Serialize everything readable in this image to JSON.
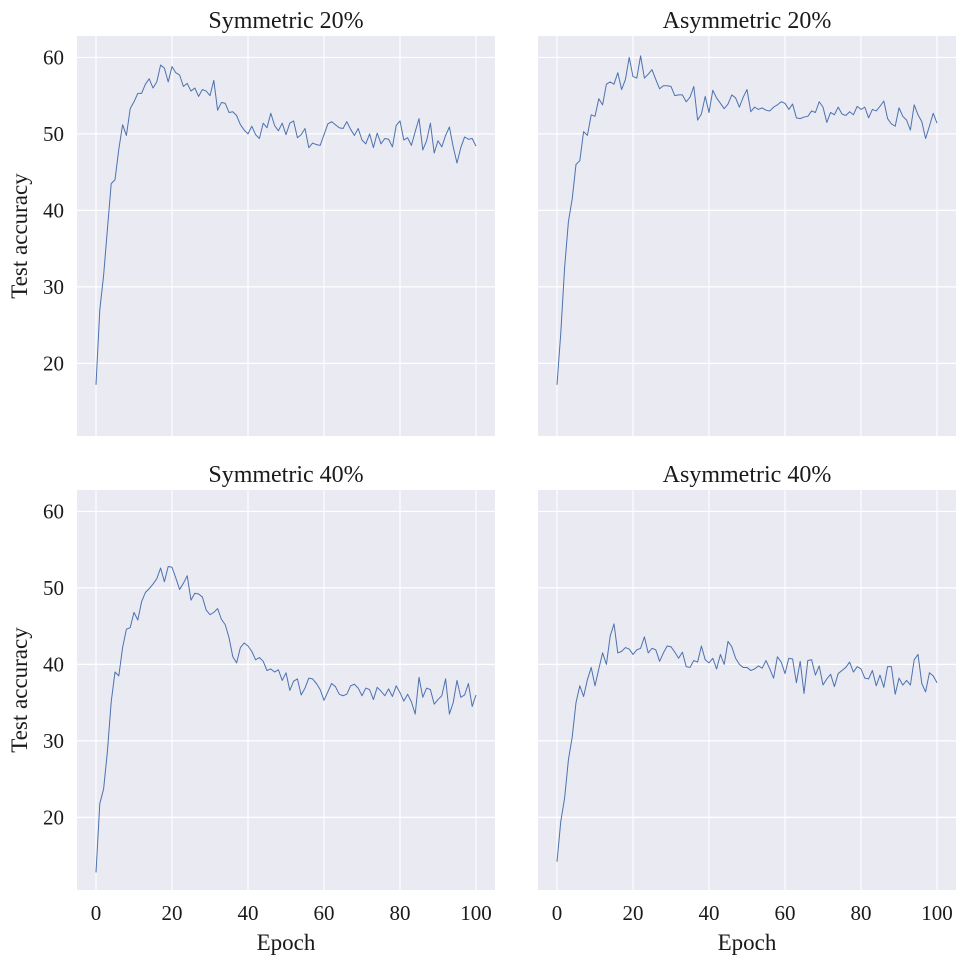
{
  "colors": {
    "background": "#eaeaf2",
    "grid": "#ffffff",
    "line": "#4c72b0"
  },
  "chart_data": [
    {
      "type": "line",
      "title": "Symmetric 20%",
      "xlabel": "",
      "ylabel": "Test accuracy",
      "xlim": [
        -5,
        105
      ],
      "ylim": [
        10.5,
        62.8
      ],
      "xticks": [
        0,
        20,
        40,
        60,
        80,
        100
      ],
      "yticks": [
        20,
        30,
        40,
        50,
        60
      ],
      "xtick_labels_visible": false,
      "ytick_labels_visible": true,
      "grid": true,
      "series": [
        {
          "values": [
            17.2,
            27.0,
            31.5,
            37.5,
            43.5,
            44.0,
            48.0,
            51.2,
            49.8,
            53.3,
            54.2,
            55.3,
            55.3,
            56.5,
            57.2,
            56.0,
            56.8,
            59.0,
            58.6,
            56.8,
            58.8,
            58.0,
            57.7,
            56.2,
            56.6,
            55.6,
            56.0,
            54.9,
            55.8,
            55.6,
            55.0,
            57.0,
            53.1,
            54.1,
            54.0,
            52.8,
            52.9,
            52.4,
            51.2,
            50.5,
            50.0,
            51.0,
            49.9,
            49.4,
            51.4,
            50.8,
            52.7,
            51.1,
            50.4,
            51.4,
            49.9,
            51.4,
            51.7,
            49.5,
            49.9,
            50.7,
            48.2,
            48.8,
            48.6,
            48.5,
            49.9,
            51.3,
            51.6,
            51.2,
            50.8,
            50.7,
            51.6,
            50.6,
            49.8,
            50.7,
            49.2,
            48.7,
            50.0,
            48.2,
            50.1,
            48.7,
            49.4,
            49.3,
            48.3,
            51.1,
            51.7,
            49.2,
            49.5,
            48.5,
            50.3,
            52.0,
            47.9,
            49.1,
            51.4,
            47.5,
            49.1,
            48.3,
            49.8,
            50.9,
            48.3,
            46.2,
            48.2,
            49.6,
            49.3,
            49.4,
            48.4
          ]
        }
      ]
    },
    {
      "type": "line",
      "title": "Asymmetric 20%",
      "xlabel": "",
      "ylabel": "",
      "xlim": [
        -5,
        105
      ],
      "ylim": [
        10.5,
        62.8
      ],
      "xticks": [
        0,
        20,
        40,
        60,
        80,
        100
      ],
      "yticks": [
        20,
        30,
        40,
        50,
        60
      ],
      "xtick_labels_visible": false,
      "ytick_labels_visible": false,
      "grid": true,
      "series": [
        {
          "values": [
            17.2,
            24.0,
            32.5,
            38.5,
            41.5,
            46.0,
            46.5,
            50.3,
            49.8,
            52.5,
            52.3,
            54.6,
            53.8,
            56.5,
            56.8,
            56.5,
            58.0,
            55.8,
            57.1,
            60.0,
            57.5,
            57.3,
            60.2,
            57.3,
            57.8,
            58.4,
            57.1,
            55.9,
            56.3,
            56.3,
            56.2,
            55.0,
            55.1,
            55.1,
            54.2,
            54.8,
            56.2,
            51.8,
            52.6,
            54.9,
            52.8,
            55.7,
            54.7,
            54.0,
            53.3,
            53.9,
            55.1,
            54.7,
            53.5,
            54.8,
            55.8,
            52.9,
            53.5,
            53.2,
            53.4,
            53.1,
            53.0,
            53.5,
            53.8,
            54.2,
            54.0,
            53.2,
            53.9,
            52.1,
            52.0,
            52.2,
            52.3,
            53.0,
            52.8,
            54.2,
            53.5,
            51.5,
            52.8,
            52.5,
            53.5,
            52.6,
            52.4,
            52.9,
            52.5,
            53.6,
            53.2,
            53.5,
            52.1,
            53.2,
            53.0,
            53.6,
            54.3,
            52.0,
            51.3,
            51.0,
            53.4,
            52.3,
            51.8,
            50.5,
            53.8,
            52.5,
            51.6,
            49.4,
            51.0,
            52.7,
            51.4
          ]
        }
      ]
    },
    {
      "type": "line",
      "title": "Symmetric 40%",
      "xlabel": "Epoch",
      "ylabel": "Test accuracy",
      "xlim": [
        -5,
        105
      ],
      "ylim": [
        10.5,
        62.8
      ],
      "xticks": [
        0,
        20,
        40,
        60,
        80,
        100
      ],
      "yticks": [
        20,
        30,
        40,
        50,
        60
      ],
      "xtick_labels_visible": true,
      "ytick_labels_visible": true,
      "grid": true,
      "series": [
        {
          "values": [
            12.8,
            21.8,
            23.7,
            28.6,
            35.1,
            39.0,
            38.5,
            42.2,
            44.6,
            44.8,
            46.8,
            45.8,
            48.2,
            49.4,
            49.9,
            50.5,
            51.2,
            52.6,
            50.8,
            52.8,
            52.7,
            51.3,
            49.8,
            50.6,
            51.6,
            48.4,
            49.3,
            49.2,
            48.8,
            47.1,
            46.5,
            46.8,
            47.3,
            45.9,
            45.2,
            43.5,
            41.0,
            40.2,
            42.2,
            42.8,
            42.4,
            41.7,
            40.6,
            40.9,
            40.4,
            39.2,
            39.4,
            39.0,
            39.3,
            37.9,
            38.9,
            36.6,
            37.8,
            38.1,
            36.0,
            36.9,
            38.2,
            38.1,
            37.5,
            36.7,
            35.3,
            36.4,
            37.5,
            37.1,
            36.1,
            35.9,
            36.1,
            37.2,
            37.4,
            36.9,
            35.9,
            36.9,
            36.7,
            35.4,
            37.0,
            36.5,
            35.9,
            36.8,
            35.8,
            37.2,
            36.3,
            35.2,
            36.1,
            35.1,
            33.5,
            38.3,
            35.7,
            36.9,
            36.7,
            34.8,
            35.4,
            35.9,
            38.1,
            33.5,
            35.0,
            37.9,
            35.7,
            36.0,
            37.5,
            34.5,
            36.0
          ]
        }
      ]
    },
    {
      "type": "line",
      "title": "Asymmetric 40%",
      "xlabel": "Epoch",
      "ylabel": "",
      "xlim": [
        -5,
        105
      ],
      "ylim": [
        10.5,
        62.8
      ],
      "xticks": [
        0,
        20,
        40,
        60,
        80,
        100
      ],
      "yticks": [
        20,
        30,
        40,
        50,
        60
      ],
      "xtick_labels_visible": true,
      "ytick_labels_visible": false,
      "grid": true,
      "series": [
        {
          "values": [
            14.2,
            19.5,
            22.5,
            27.5,
            30.5,
            35.0,
            37.2,
            35.8,
            38.0,
            39.6,
            37.2,
            39.4,
            41.5,
            40.0,
            43.7,
            45.3,
            41.5,
            41.7,
            42.2,
            42.0,
            41.3,
            41.9,
            42.1,
            43.6,
            41.5,
            42.1,
            41.9,
            40.4,
            41.5,
            42.4,
            42.3,
            41.6,
            40.8,
            41.6,
            39.7,
            39.6,
            40.5,
            40.3,
            42.4,
            40.6,
            40.2,
            40.8,
            39.4,
            41.3,
            40.0,
            43.0,
            42.3,
            40.8,
            40.0,
            39.6,
            39.6,
            39.2,
            39.4,
            39.8,
            39.5,
            40.5,
            39.4,
            38.2,
            41.0,
            40.3,
            38.8,
            40.8,
            40.7,
            37.6,
            40.4,
            36.2,
            40.5,
            40.6,
            38.6,
            39.8,
            37.3,
            38.1,
            38.7,
            37.1,
            38.8,
            39.2,
            39.6,
            40.3,
            39.0,
            39.7,
            39.4,
            38.2,
            38.1,
            39.2,
            37.2,
            38.6,
            37.0,
            39.7,
            39.7,
            36.1,
            38.2,
            37.3,
            37.9,
            37.3,
            40.6,
            41.3,
            37.5,
            36.4,
            38.9,
            38.5,
            37.6
          ]
        }
      ]
    }
  ]
}
